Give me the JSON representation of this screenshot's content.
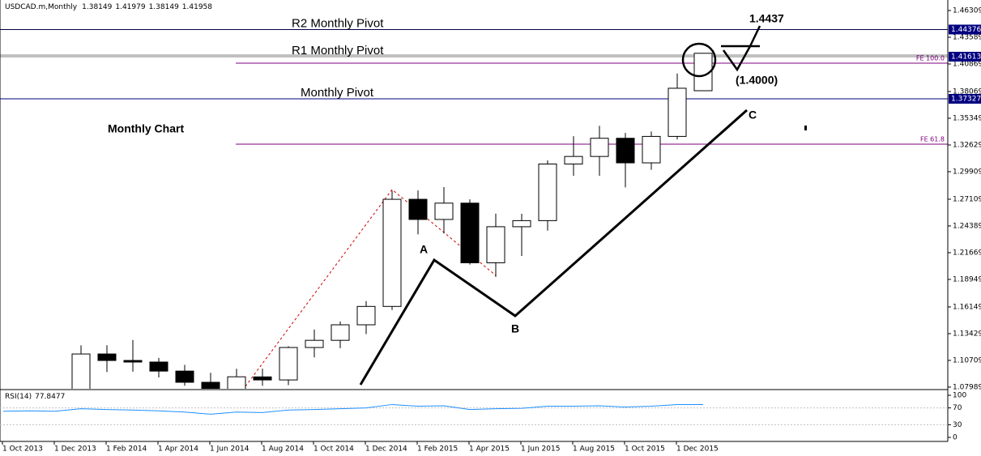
{
  "chart_data": {
    "type": "candlestick",
    "title": "USDCAD.m,Monthly",
    "categories": [
      "1 Oct 2013",
      null,
      "1 Dec 2013",
      null,
      "1 Feb 2014",
      null,
      "1 Apr 2014",
      null,
      "1 Jun 2014",
      null,
      "1 Aug 2014",
      null,
      "1 Oct 2014",
      null,
      "1 Dec 2014",
      null,
      "1 Feb 2015",
      null,
      "1 Apr 2015",
      null,
      "1 Jun 2015",
      null,
      "1 Aug 2015",
      null,
      "1 Oct 2015",
      null,
      "1 Dec 2015",
      null
    ],
    "open": [
      null,
      null,
      null,
      1.0637,
      1.1136,
      1.107,
      1.1054,
      1.0962,
      1.0848,
      1.0673,
      1.0903,
      1.0872,
      1.1202,
      1.1275,
      1.1433,
      1.162,
      1.271,
      1.2505,
      1.2671,
      1.2064,
      1.2431,
      1.2493,
      1.3069,
      1.3146,
      1.3331,
      1.3081,
      1.335,
      1.38149
    ],
    "high": [
      null,
      null,
      null,
      1.1224,
      1.1225,
      1.1279,
      1.1096,
      1.1025,
      1.0945,
      1.0986,
      1.0986,
      1.1215,
      1.1385,
      1.1467,
      1.1674,
      1.2798,
      1.28,
      1.2834,
      1.271,
      1.2564,
      1.2563,
      1.3106,
      1.3352,
      1.3457,
      1.3385,
      1.34,
      1.399,
      1.41979
    ],
    "low": [
      null,
      null,
      null,
      1.0617,
      1.0952,
      1.0956,
      1.0897,
      1.0813,
      1.0621,
      1.062,
      1.0812,
      1.0819,
      1.1101,
      1.1195,
      1.1338,
      1.1583,
      1.2353,
      1.2362,
      1.2046,
      1.192,
      1.2134,
      1.2391,
      1.295,
      1.295,
      1.2831,
      1.301,
      1.3318,
      1.38149
    ],
    "close": [
      null,
      null,
      null,
      1.1136,
      1.107,
      1.1054,
      1.0962,
      1.0848,
      1.0673,
      1.0904,
      1.0872,
      1.1202,
      1.1275,
      1.1433,
      1.162,
      1.271,
      1.2505,
      1.2671,
      1.2064,
      1.2431,
      1.2493,
      1.3069,
      1.3146,
      1.3331,
      1.3081,
      1.335,
      1.384,
      1.41958
    ],
    "up_color": "#ffffff",
    "down_color": "#000000",
    "ylim": [
      1.0782,
      1.4738
    ],
    "yticks": [
      1.46309,
      1.43589,
      1.40869,
      1.38069,
      1.35349,
      1.32629,
      1.29909,
      1.27109,
      1.24389,
      1.21669,
      1.18949,
      1.16149,
      1.13429,
      1.10709,
      1.07989
    ],
    "levels": [
      {
        "name": "R2 Monthly Pivot",
        "value": 1.44376,
        "color": "#000040"
      },
      {
        "name": "R1 Monthly Pivot",
        "value": 1.41613,
        "color": "#808080"
      },
      {
        "name": "Monthly Pivot",
        "value": 1.37327,
        "color": "#000080"
      }
    ],
    "fib_levels": [
      {
        "name": "FE 100.0",
        "value": 1.4095,
        "color": "#800080"
      },
      {
        "name": "FE 61.8",
        "value": 1.3271,
        "color": "#800080"
      }
    ],
    "annotations": [
      "Monthly Chart",
      "A",
      "B",
      "C",
      "1.4437",
      "(1.4000)"
    ],
    "rsi": {
      "name": "RSI(14)",
      "last": 77.8477,
      "color": "#1e90ff",
      "values": [
        62,
        63,
        62,
        68,
        66,
        65,
        63,
        60,
        55,
        60,
        59,
        65,
        66,
        68,
        70,
        78,
        74,
        75,
        66,
        68,
        69,
        74,
        74,
        75,
        72,
        74,
        78,
        77.8477
      ],
      "ylim": [
        0,
        100
      ],
      "yticks": [
        100,
        70,
        30,
        0
      ]
    }
  }
}
